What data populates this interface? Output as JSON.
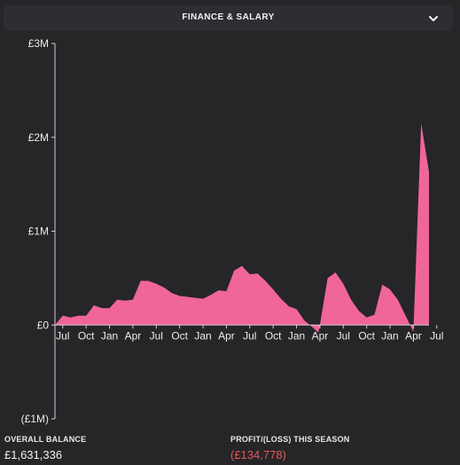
{
  "header": {
    "title": "FINANCE & SALARY",
    "toggle_icon": "chevron-down-icon"
  },
  "colors": {
    "area": "#f0659a",
    "axis": "#cfcfd3",
    "loss": "#e45a5a"
  },
  "chart_data": {
    "type": "area",
    "title": "",
    "xlabel": "",
    "ylabel": "",
    "ylim": [
      -1000000,
      3000000
    ],
    "yticks": [
      {
        "value": 3000000,
        "label": "£3M"
      },
      {
        "value": 2000000,
        "label": "£2M"
      },
      {
        "value": 1000000,
        "label": "£1M"
      },
      {
        "value": 0,
        "label": "£0"
      },
      {
        "value": -1000000,
        "label": "(£1M)"
      }
    ],
    "x_range": [
      0,
      57
    ],
    "xticks": [
      {
        "x": 1,
        "label": "Jul"
      },
      {
        "x": 4,
        "label": "Oct"
      },
      {
        "x": 7,
        "label": "Jan"
      },
      {
        "x": 10,
        "label": "Apr"
      },
      {
        "x": 13,
        "label": "Jul"
      },
      {
        "x": 16,
        "label": "Oct"
      },
      {
        "x": 19,
        "label": "Jan"
      },
      {
        "x": 22,
        "label": "Apr"
      },
      {
        "x": 25,
        "label": "Jul"
      },
      {
        "x": 28,
        "label": "Oct"
      },
      {
        "x": 31,
        "label": "Jan"
      },
      {
        "x": 34,
        "label": "Apr"
      },
      {
        "x": 37,
        "label": "Jul"
      },
      {
        "x": 40,
        "label": "Oct"
      },
      {
        "x": 43,
        "label": "Jan"
      },
      {
        "x": 46,
        "label": "Apr"
      },
      {
        "x": 49,
        "label": "Jul"
      }
    ],
    "series": [
      {
        "values": [
          [
            0,
            0
          ],
          [
            1,
            100000
          ],
          [
            2,
            80000
          ],
          [
            3,
            100000
          ],
          [
            4,
            100000
          ],
          [
            5,
            210000
          ],
          [
            6,
            180000
          ],
          [
            7,
            180000
          ],
          [
            8,
            270000
          ],
          [
            9,
            260000
          ],
          [
            10,
            270000
          ],
          [
            11,
            470000
          ],
          [
            12,
            470000
          ],
          [
            13,
            440000
          ],
          [
            14,
            400000
          ],
          [
            15,
            340000
          ],
          [
            16,
            310000
          ],
          [
            17,
            300000
          ],
          [
            18,
            290000
          ],
          [
            19,
            280000
          ],
          [
            20,
            320000
          ],
          [
            21,
            370000
          ],
          [
            22,
            360000
          ],
          [
            23,
            580000
          ],
          [
            24,
            630000
          ],
          [
            25,
            540000
          ],
          [
            26,
            550000
          ],
          [
            27,
            470000
          ],
          [
            28,
            380000
          ],
          [
            29,
            280000
          ],
          [
            30,
            200000
          ],
          [
            31,
            170000
          ],
          [
            32,
            50000
          ],
          [
            33,
            -20000
          ],
          [
            33.8,
            -80000
          ],
          [
            34,
            0
          ],
          [
            35,
            500000
          ],
          [
            36,
            560000
          ],
          [
            37,
            440000
          ],
          [
            38,
            270000
          ],
          [
            39,
            150000
          ],
          [
            40,
            80000
          ],
          [
            41,
            110000
          ],
          [
            42,
            430000
          ],
          [
            43,
            380000
          ],
          [
            44,
            270000
          ],
          [
            45,
            100000
          ],
          [
            46,
            -70000
          ],
          [
            47,
            2150000
          ],
          [
            48,
            1631336
          ]
        ]
      }
    ]
  },
  "footer": {
    "balance_label": "OVERALL BALANCE",
    "balance_value": "£1,631,336",
    "profit_label": "PROFIT/(LOSS) THIS SEASON",
    "profit_value": "(£134,778)"
  }
}
